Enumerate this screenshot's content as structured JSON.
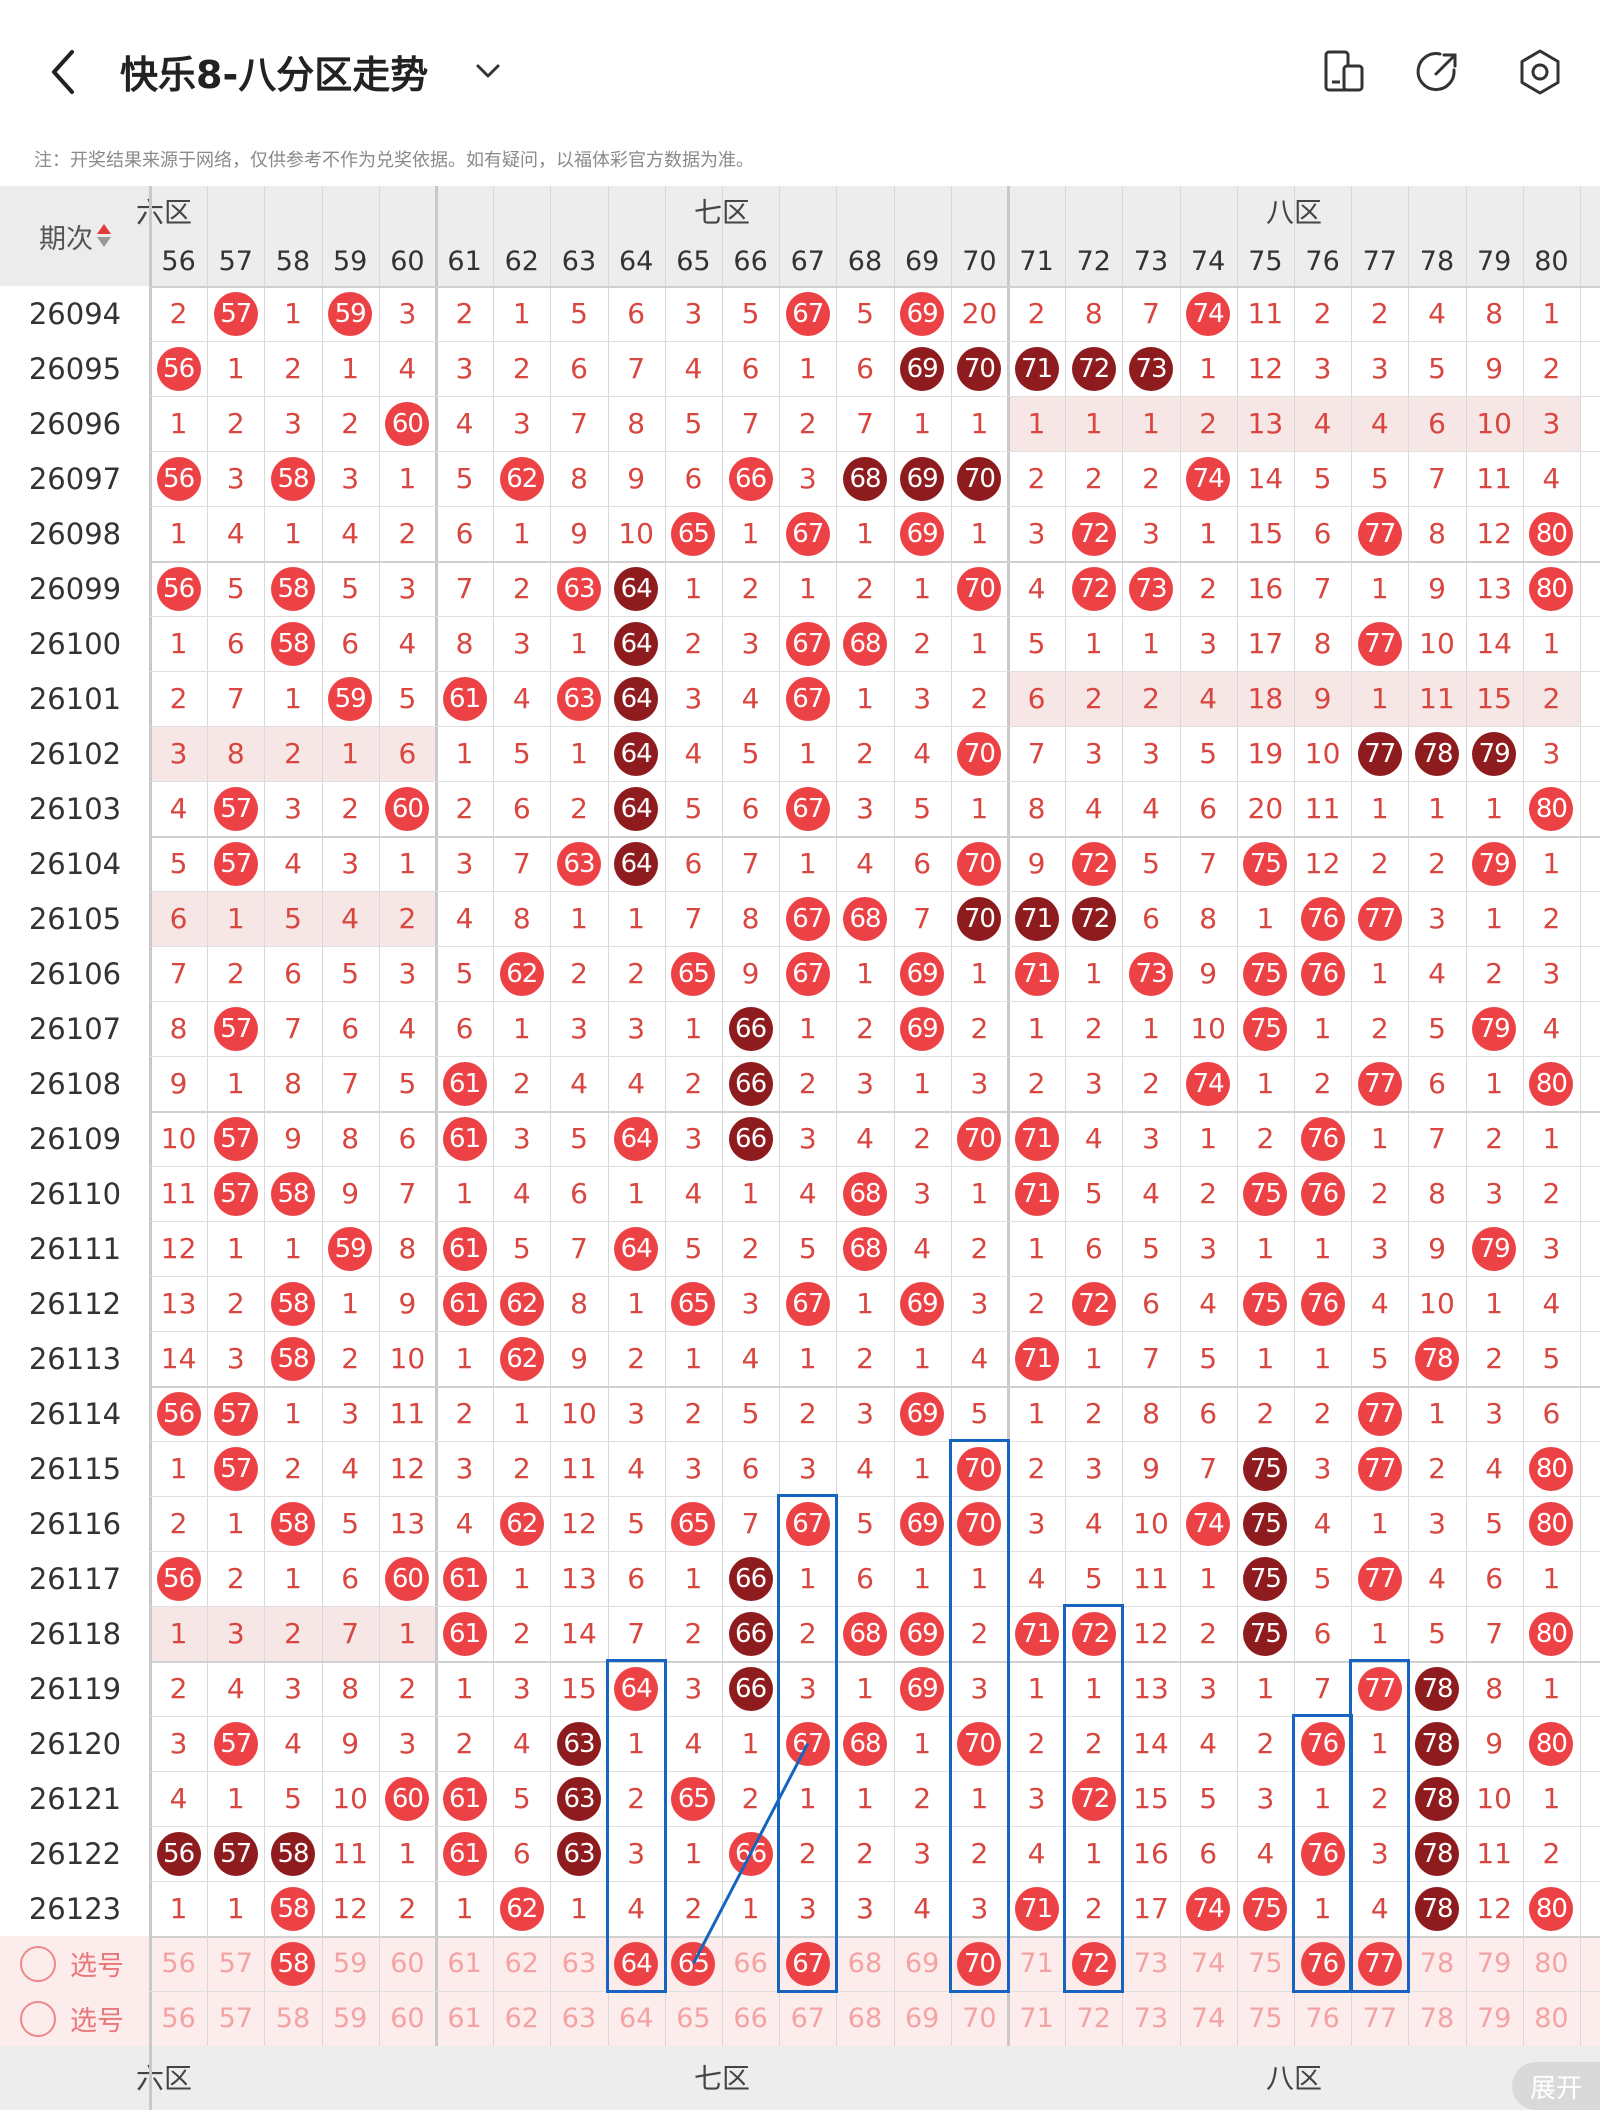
{
  "header": {
    "title": "快乐8-八分区走势",
    "note": "注：开奖结果来源于网络，仅供参考不作为兑奖依据。如有疑问，以福体彩官方数据为准。",
    "icons": [
      "back-icon",
      "chevron-down-icon",
      "device-icon",
      "share-icon",
      "settings-icon"
    ]
  },
  "table": {
    "period_header": "期次",
    "zones": [
      {
        "label": "六区",
        "visible_label": "六区"
      },
      {
        "label": "七区"
      },
      {
        "label": "八区"
      }
    ],
    "numbers": [
      "56",
      "57",
      "58",
      "59",
      "60",
      "61",
      "62",
      "63",
      "64",
      "65",
      "66",
      "67",
      "68",
      "69",
      "70",
      "71",
      "72",
      "73",
      "74",
      "75",
      "76",
      "77",
      "78",
      "79",
      "80"
    ],
    "rows": [
      {
        "period": "26094",
        "cells": [
          "2",
          "57",
          "1",
          "59",
          "3",
          "2",
          "1",
          "5",
          "6",
          "3",
          "5",
          "67",
          "5",
          "69",
          "20",
          "2",
          "8",
          "7",
          "74",
          "11",
          "2",
          "2",
          "4",
          "8",
          "1"
        ]
      },
      {
        "period": "26095",
        "cells": [
          "56",
          "1",
          "2",
          "1",
          "4",
          "3",
          "2",
          "6",
          "7",
          "4",
          "6",
          "1",
          "6",
          "69",
          "70",
          "71",
          "72",
          "73",
          "1",
          "12",
          "3",
          "3",
          "5",
          "9",
          "2"
        ]
      },
      {
        "period": "26096",
        "cells": [
          "1",
          "2",
          "3",
          "2",
          "60",
          "4",
          "3",
          "7",
          "8",
          "5",
          "7",
          "2",
          "7",
          "1",
          "1",
          "1",
          "1",
          "1",
          "2",
          "13",
          "4",
          "4",
          "6",
          "10",
          "3"
        ]
      },
      {
        "period": "26097",
        "cells": [
          "56",
          "3",
          "58",
          "3",
          "1",
          "5",
          "62",
          "8",
          "9",
          "6",
          "66",
          "3",
          "68",
          "69",
          "70",
          "2",
          "2",
          "2",
          "74",
          "14",
          "5",
          "5",
          "7",
          "11",
          "4"
        ]
      },
      {
        "period": "26098",
        "cells": [
          "1",
          "4",
          "1",
          "4",
          "2",
          "6",
          "1",
          "9",
          "10",
          "65",
          "1",
          "67",
          "1",
          "69",
          "1",
          "3",
          "72",
          "3",
          "1",
          "15",
          "6",
          "77",
          "8",
          "12",
          "80"
        ]
      },
      {
        "period": "26099",
        "cells": [
          "56",
          "5",
          "58",
          "5",
          "3",
          "7",
          "2",
          "63",
          "64",
          "1",
          "2",
          "1",
          "2",
          "1",
          "70",
          "4",
          "72",
          "73",
          "2",
          "16",
          "7",
          "1",
          "9",
          "13",
          "80"
        ]
      },
      {
        "period": "26100",
        "cells": [
          "1",
          "6",
          "58",
          "6",
          "4",
          "8",
          "3",
          "1",
          "64",
          "2",
          "3",
          "67",
          "68",
          "2",
          "1",
          "5",
          "1",
          "1",
          "3",
          "17",
          "8",
          "77",
          "10",
          "14",
          "1"
        ]
      },
      {
        "period": "26101",
        "cells": [
          "2",
          "7",
          "1",
          "59",
          "5",
          "61",
          "4",
          "63",
          "64",
          "3",
          "4",
          "67",
          "1",
          "3",
          "2",
          "6",
          "2",
          "2",
          "4",
          "18",
          "9",
          "1",
          "11",
          "15",
          "2"
        ]
      },
      {
        "period": "26102",
        "cells": [
          "3",
          "8",
          "2",
          "1",
          "6",
          "1",
          "5",
          "1",
          "64",
          "4",
          "5",
          "1",
          "2",
          "4",
          "70",
          "7",
          "3",
          "3",
          "5",
          "19",
          "10",
          "77",
          "78",
          "79",
          "3"
        ]
      },
      {
        "period": "26103",
        "cells": [
          "4",
          "57",
          "3",
          "2",
          "60",
          "2",
          "6",
          "2",
          "64",
          "5",
          "6",
          "67",
          "3",
          "5",
          "1",
          "8",
          "4",
          "4",
          "6",
          "20",
          "11",
          "1",
          "1",
          "1",
          "80"
        ]
      },
      {
        "period": "26104",
        "cells": [
          "5",
          "57",
          "4",
          "3",
          "1",
          "3",
          "7",
          "63",
          "64",
          "6",
          "7",
          "1",
          "4",
          "6",
          "70",
          "9",
          "72",
          "5",
          "7",
          "75",
          "12",
          "2",
          "2",
          "79",
          "1"
        ]
      },
      {
        "period": "26105",
        "cells": [
          "6",
          "1",
          "5",
          "4",
          "2",
          "4",
          "8",
          "1",
          "1",
          "7",
          "8",
          "67",
          "68",
          "7",
          "70",
          "71",
          "72",
          "6",
          "8",
          "1",
          "76",
          "77",
          "3",
          "1",
          "2"
        ]
      },
      {
        "period": "26106",
        "cells": [
          "7",
          "2",
          "6",
          "5",
          "3",
          "5",
          "62",
          "2",
          "2",
          "65",
          "9",
          "67",
          "1",
          "69",
          "1",
          "71",
          "1",
          "73",
          "9",
          "75",
          "76",
          "1",
          "4",
          "2",
          "3"
        ]
      },
      {
        "period": "26107",
        "cells": [
          "8",
          "57",
          "7",
          "6",
          "4",
          "6",
          "1",
          "3",
          "3",
          "1",
          "66",
          "1",
          "2",
          "69",
          "2",
          "1",
          "2",
          "1",
          "10",
          "75",
          "1",
          "2",
          "5",
          "79",
          "4"
        ]
      },
      {
        "period": "26108",
        "cells": [
          "9",
          "1",
          "8",
          "7",
          "5",
          "61",
          "2",
          "4",
          "4",
          "2",
          "66",
          "2",
          "3",
          "1",
          "3",
          "2",
          "3",
          "2",
          "74",
          "1",
          "2",
          "77",
          "6",
          "1",
          "80"
        ]
      },
      {
        "period": "26109",
        "cells": [
          "10",
          "57",
          "9",
          "8",
          "6",
          "61",
          "3",
          "5",
          "64",
          "3",
          "66",
          "3",
          "4",
          "2",
          "70",
          "71",
          "4",
          "3",
          "1",
          "2",
          "76",
          "1",
          "7",
          "2",
          "1"
        ]
      },
      {
        "period": "26110",
        "cells": [
          "11",
          "57",
          "58",
          "9",
          "7",
          "1",
          "4",
          "6",
          "1",
          "4",
          "1",
          "4",
          "68",
          "3",
          "1",
          "71",
          "5",
          "4",
          "2",
          "75",
          "76",
          "2",
          "8",
          "3",
          "2"
        ]
      },
      {
        "period": "26111",
        "cells": [
          "12",
          "1",
          "1",
          "59",
          "8",
          "61",
          "5",
          "7",
          "64",
          "5",
          "2",
          "5",
          "68",
          "4",
          "2",
          "1",
          "6",
          "5",
          "3",
          "1",
          "1",
          "3",
          "9",
          "79",
          "3"
        ]
      },
      {
        "period": "26112",
        "cells": [
          "13",
          "2",
          "58",
          "1",
          "9",
          "61",
          "62",
          "8",
          "1",
          "65",
          "3",
          "67",
          "1",
          "69",
          "3",
          "2",
          "72",
          "6",
          "4",
          "75",
          "76",
          "4",
          "10",
          "1",
          "4"
        ]
      },
      {
        "period": "26113",
        "cells": [
          "14",
          "3",
          "58",
          "2",
          "10",
          "1",
          "62",
          "9",
          "2",
          "1",
          "4",
          "1",
          "2",
          "1",
          "4",
          "71",
          "1",
          "7",
          "5",
          "1",
          "1",
          "5",
          "78",
          "2",
          "5"
        ]
      },
      {
        "period": "26114",
        "cells": [
          "56",
          "57",
          "1",
          "3",
          "11",
          "2",
          "1",
          "10",
          "3",
          "2",
          "5",
          "2",
          "3",
          "69",
          "5",
          "1",
          "2",
          "8",
          "6",
          "2",
          "2",
          "77",
          "1",
          "3",
          "6"
        ]
      },
      {
        "period": "26115",
        "cells": [
          "1",
          "57",
          "2",
          "4",
          "12",
          "3",
          "2",
          "11",
          "4",
          "3",
          "6",
          "3",
          "4",
          "1",
          "70",
          "2",
          "3",
          "9",
          "7",
          "75",
          "3",
          "77",
          "2",
          "4",
          "80"
        ]
      },
      {
        "period": "26116",
        "cells": [
          "2",
          "1",
          "58",
          "5",
          "13",
          "4",
          "62",
          "12",
          "5",
          "65",
          "7",
          "67",
          "5",
          "69",
          "70",
          "3",
          "4",
          "10",
          "74",
          "75",
          "4",
          "1",
          "3",
          "5",
          "80"
        ]
      },
      {
        "period": "26117",
        "cells": [
          "56",
          "2",
          "1",
          "6",
          "60",
          "61",
          "1",
          "13",
          "6",
          "1",
          "66",
          "1",
          "6",
          "1",
          "1",
          "4",
          "5",
          "11",
          "1",
          "75",
          "5",
          "77",
          "4",
          "6",
          "1"
        ]
      },
      {
        "period": "26118",
        "cells": [
          "1",
          "3",
          "2",
          "7",
          "1",
          "61",
          "2",
          "14",
          "7",
          "2",
          "66",
          "2",
          "68",
          "69",
          "2",
          "71",
          "72",
          "12",
          "2",
          "75",
          "6",
          "1",
          "5",
          "7",
          "80"
        ]
      },
      {
        "period": "26119",
        "cells": [
          "2",
          "4",
          "3",
          "8",
          "2",
          "1",
          "3",
          "15",
          "64",
          "3",
          "66",
          "3",
          "1",
          "69",
          "3",
          "1",
          "1",
          "13",
          "3",
          "1",
          "7",
          "77",
          "78",
          "8",
          "1"
        ]
      },
      {
        "period": "26120",
        "cells": [
          "3",
          "57",
          "4",
          "9",
          "3",
          "2",
          "4",
          "63",
          "1",
          "4",
          "1",
          "67",
          "68",
          "1",
          "70",
          "2",
          "2",
          "14",
          "4",
          "2",
          "76",
          "1",
          "78",
          "9",
          "80"
        ]
      },
      {
        "period": "26121",
        "cells": [
          "4",
          "1",
          "5",
          "10",
          "60",
          "61",
          "5",
          "63",
          "2",
          "65",
          "2",
          "1",
          "1",
          "2",
          "1",
          "3",
          "72",
          "15",
          "5",
          "3",
          "1",
          "2",
          "78",
          "10",
          "1"
        ]
      },
      {
        "period": "26122",
        "cells": [
          "56",
          "57",
          "58",
          "11",
          "1",
          "61",
          "6",
          "63",
          "3",
          "1",
          "66",
          "2",
          "2",
          "3",
          "2",
          "4",
          "1",
          "16",
          "6",
          "4",
          "76",
          "3",
          "78",
          "11",
          "2"
        ]
      },
      {
        "period": "26123",
        "cells": [
          "1",
          "1",
          "58",
          "12",
          "2",
          "1",
          "62",
          "1",
          "4",
          "2",
          "1",
          "3",
          "3",
          "4",
          "3",
          "71",
          "2",
          "17",
          "74",
          "75",
          "1",
          "4",
          "78",
          "12",
          "80"
        ]
      }
    ],
    "select_rows": [
      {
        "label": "选号",
        "selected": [
          "58",
          "64",
          "65",
          "67",
          "70",
          "72",
          "76",
          "77"
        ]
      },
      {
        "label": "选号",
        "selected": []
      }
    ],
    "expand_label": "展开"
  },
  "colors": {
    "hit_red": "#ec4246",
    "hit_dark": "#8e1c1e",
    "miss_text": "#d8463f",
    "box_blue": "#1565c0"
  }
}
